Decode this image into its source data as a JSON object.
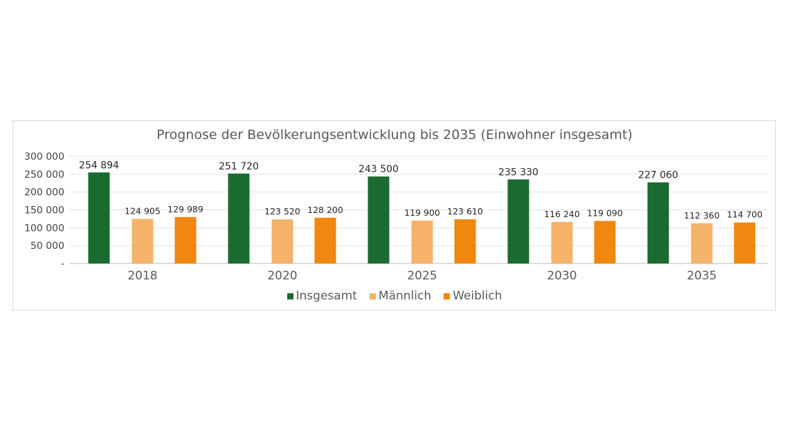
{
  "chart_data": {
    "type": "bar",
    "title": "Prognose der Bevölkerungsentwicklung bis 2035 (Einwohner insgesamt)",
    "categories": [
      "2018",
      "2020",
      "2025",
      "2030",
      "2035"
    ],
    "series": [
      {
        "name": "Insgesamt",
        "color": "#1a6b30",
        "values": [
          254894,
          251720,
          243500,
          235330,
          227060
        ],
        "labels": [
          "254 894",
          "251 720",
          "243 500",
          "235 330",
          "227 060"
        ]
      },
      {
        "name": "Männlich",
        "color": "#f5b26b",
        "values": [
          124905,
          123520,
          119900,
          116240,
          112360
        ],
        "labels": [
          "124 905",
          "123 520",
          "119 900",
          "116 240",
          "112 360"
        ]
      },
      {
        "name": "Weiblich",
        "color": "#f0870f",
        "values": [
          129989,
          128200,
          123610,
          119090,
          114700
        ],
        "labels": [
          "129 989",
          "128 200",
          "123 610",
          "119 090",
          "114 700"
        ]
      }
    ],
    "yticks": [
      0,
      50000,
      100000,
      150000,
      200000,
      250000,
      300000
    ],
    "ytick_labels": [
      "-",
      "50 000",
      "100 000",
      "150 000",
      "200 000",
      "250 000",
      "300 000"
    ],
    "ylim": [
      0,
      300000
    ],
    "grid": true,
    "legend": "bottom",
    "xlabel": "",
    "ylabel": ""
  }
}
